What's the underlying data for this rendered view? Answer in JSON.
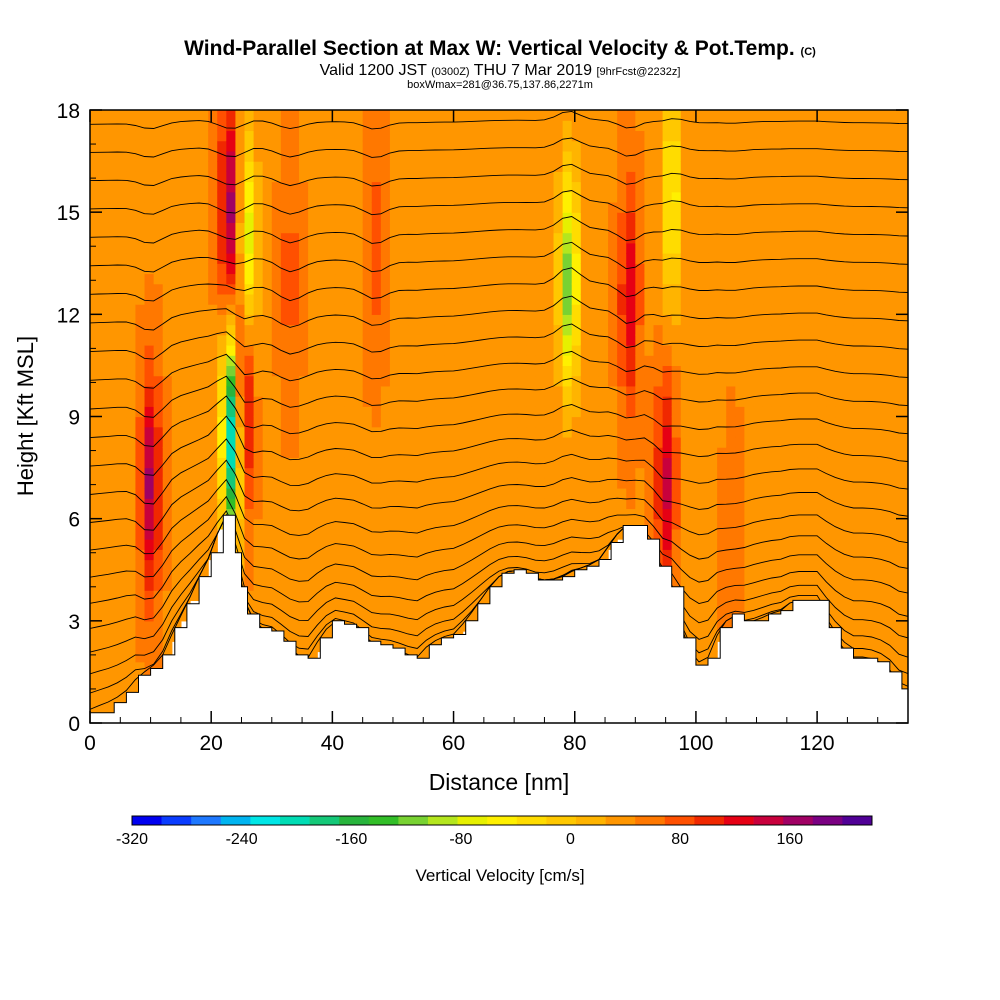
{
  "header": {
    "title": "Wind-Parallel Section at Max W: Vertical Velocity & Pot.Temp.",
    "title_mark": "(C)",
    "valid_main": "Valid 1200 JST",
    "valid_zulu": "(0300Z)",
    "valid_date": "THU 7 Mar 2019",
    "forecast": "[9hrFcst@2232z]",
    "box_info": "boxWmax=281@36.75,137.86,2271m"
  },
  "chart_data": {
    "type": "heatmap",
    "xlabel": "Distance [nm]",
    "ylabel": "Height [Kft MSL]",
    "xlim": [
      0,
      135
    ],
    "ylim": [
      0,
      18
    ],
    "x_ticks": [
      "0",
      "20",
      "40",
      "60",
      "80",
      "100",
      "120"
    ],
    "y_ticks": [
      "0",
      "3",
      "6",
      "9",
      "12",
      "15",
      "18"
    ],
    "colorbar": {
      "label": "Vertical Velocity [cm/s]",
      "tick_labels": [
        "-320",
        "-240",
        "-160",
        "-80",
        "0",
        "80",
        "160"
      ],
      "tick_values": [
        -320,
        -240,
        -160,
        -80,
        0,
        80,
        160
      ],
      "range": [
        -320,
        220
      ],
      "colors": [
        "#0000f0",
        "#0a3cff",
        "#1e78ff",
        "#00b4f0",
        "#00e6e6",
        "#00dcb4",
        "#14c878",
        "#28b43c",
        "#32be28",
        "#78d232",
        "#b4e61e",
        "#e6f000",
        "#fff000",
        "#ffdc00",
        "#ffc800",
        "#ffb400",
        "#ff9600",
        "#ff7800",
        "#ff5000",
        "#f02800",
        "#e60014",
        "#c8003c",
        "#a00064",
        "#7a0082",
        "#500096"
      ]
    },
    "terrain_profile": {
      "x_nm": [
        0,
        4,
        6,
        8,
        10,
        12,
        14,
        16,
        18,
        20,
        22,
        23,
        24,
        25,
        26,
        28,
        30,
        32,
        34,
        36,
        38,
        40,
        42,
        44,
        46,
        48,
        50,
        52,
        54,
        56,
        58,
        60,
        62,
        64,
        66,
        68,
        70,
        72,
        74,
        76,
        78,
        80,
        82,
        84,
        86,
        88,
        90,
        92,
        94,
        96,
        98,
        100,
        102,
        104,
        106,
        108,
        110,
        112,
        114,
        116,
        118,
        120,
        122,
        124,
        126,
        128,
        130,
        132,
        134,
        135
      ],
      "height_kft": [
        0.3,
        0.6,
        0.9,
        1.4,
        1.6,
        2.0,
        2.8,
        3.5,
        4.3,
        5.0,
        6.1,
        6.1,
        5.0,
        4.0,
        3.2,
        2.8,
        2.7,
        2.4,
        2.0,
        1.9,
        2.5,
        3.0,
        2.9,
        2.8,
        2.4,
        2.3,
        2.2,
        2.0,
        1.9,
        2.3,
        2.5,
        2.6,
        3.0,
        3.5,
        4.0,
        4.4,
        4.5,
        4.4,
        4.2,
        4.2,
        4.3,
        4.5,
        4.6,
        4.8,
        5.3,
        5.8,
        5.8,
        5.4,
        4.6,
        4.0,
        2.5,
        1.7,
        1.9,
        2.8,
        3.2,
        3.0,
        3.0,
        3.2,
        3.3,
        3.6,
        3.6,
        3.6,
        2.8,
        2.2,
        1.9,
        1.9,
        1.8,
        1.5,
        1.0,
        1.0
      ]
    },
    "velocity_features": [
      {
        "x_nm": 10,
        "z_kft": 7.0,
        "w_cms": 160
      },
      {
        "x_nm": 23,
        "z_kft": 15.0,
        "w_cms": 170
      },
      {
        "x_nm": 25,
        "z_kft": 9.5,
        "w_cms": 210
      },
      {
        "x_nm": 23.5,
        "z_kft": 8.5,
        "w_cms": -260
      },
      {
        "x_nm": 26,
        "z_kft": 14.0,
        "w_cms": -80
      },
      {
        "x_nm": 33,
        "z_kft": 13.0,
        "w_cms": 80
      },
      {
        "x_nm": 47,
        "z_kft": 14.0,
        "w_cms": 80
      },
      {
        "x_nm": 79,
        "z_kft": 13.0,
        "w_cms": -120
      },
      {
        "x_nm": 89,
        "z_kft": 12.5,
        "w_cms": 130
      },
      {
        "x_nm": 95,
        "z_kft": 7.0,
        "w_cms": 140
      },
      {
        "x_nm": 96,
        "z_kft": 15.5,
        "w_cms": -60
      },
      {
        "x_nm": 106,
        "z_kft": 5.5,
        "w_cms": 60
      }
    ]
  }
}
